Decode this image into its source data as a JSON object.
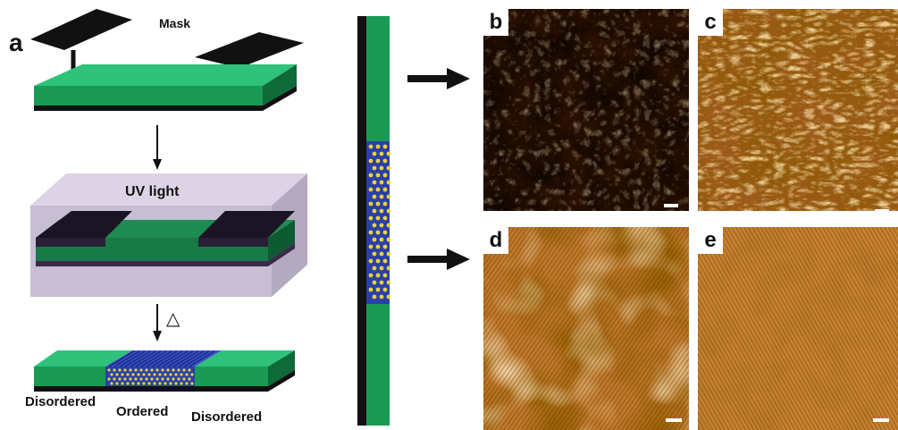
{
  "schematic": {
    "panel_label": "a",
    "mask_label": "Mask",
    "uv_label": "UV light",
    "heat_symbol": "△",
    "region_left": "Disordered",
    "region_middle": "Ordered",
    "region_right": "Disordered"
  },
  "afm_panels": [
    {
      "label": "b",
      "texture": "coarse-bright"
    },
    {
      "label": "c",
      "texture": "lamellar-flakes"
    },
    {
      "label": "d",
      "texture": "fine-stripes-with-domains"
    },
    {
      "label": "e",
      "texture": "fine-stripes-uniform"
    }
  ],
  "colors": {
    "film_green": "#1a9a55",
    "film_green_dark": "#0e6a38",
    "substrate": "#111111",
    "ordered_blue": "#2b3fa8",
    "dot_yellow": "#e8d23a",
    "uv_box": "#cfc6d8",
    "afm_dark": "#3a1600",
    "afm_mid": "#b5721e",
    "afm_light": "#ffd98a"
  }
}
